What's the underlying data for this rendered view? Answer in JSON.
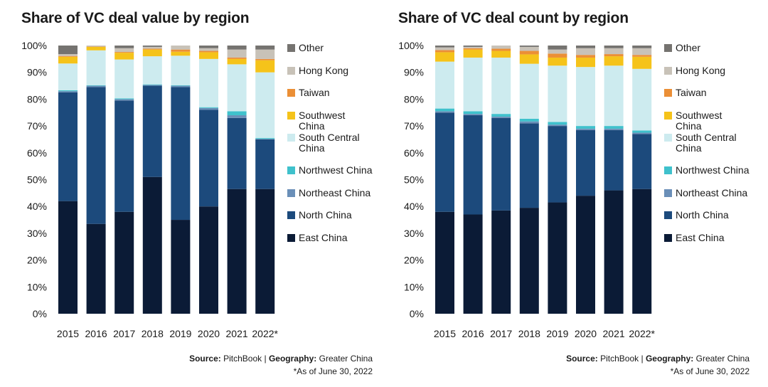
{
  "colors": {
    "East China": "#0b1b36",
    "North China": "#1c4a7c",
    "Northeast China": "#6a8fb8",
    "Northwest China": "#3fc1cc",
    "South Central China": "#cdebef",
    "Southwest China": "#f5c31a",
    "Taiwan": "#eb8f36",
    "Hong Kong": "#c8c2b8",
    "Other": "#757370"
  },
  "legend": [
    {
      "key": "Other",
      "label": "Other"
    },
    {
      "key": "Hong Kong",
      "label": "Hong Kong"
    },
    {
      "key": "Taiwan",
      "label": "Taiwan"
    },
    {
      "key": "Southwest China",
      "label": "Southwest China"
    },
    {
      "key": "South Central China",
      "label": "South Central China"
    },
    {
      "key": "Northwest China",
      "label": "Northwest China"
    },
    {
      "key": "Northeast China",
      "label": "Northeast China"
    },
    {
      "key": "North China",
      "label": "North China"
    },
    {
      "key": "East China",
      "label": "East China"
    }
  ],
  "chart_data": [
    {
      "type": "bar",
      "stacked": true,
      "title": "Share of VC deal value by region",
      "categories": [
        "2015",
        "2016",
        "2017",
        "2018",
        "2019",
        "2020",
        "2021",
        "2022*"
      ],
      "y_ticks": [
        "0%",
        "10%",
        "20%",
        "30%",
        "40%",
        "50%",
        "60%",
        "70%",
        "80%",
        "90%",
        "100%"
      ],
      "ylim": [
        0,
        100
      ],
      "series": [
        {
          "name": "East China",
          "values": [
            42,
            33.5,
            38,
            51,
            35,
            40,
            46.5,
            46.5
          ]
        },
        {
          "name": "North China",
          "values": [
            40.5,
            51,
            41.5,
            34,
            49.5,
            36,
            26.5,
            18.5
          ]
        },
        {
          "name": "Northeast China",
          "values": [
            0.5,
            0.5,
            0.5,
            0.3,
            0.5,
            0.7,
            1.0,
            0.2
          ]
        },
        {
          "name": "Northwest China",
          "values": [
            0.3,
            0.2,
            0.3,
            0.2,
            0.2,
            0.3,
            1.5,
            0.3
          ]
        },
        {
          "name": "South Central China",
          "values": [
            10,
            13,
            14.5,
            10.5,
            11,
            18,
            17.5,
            24.5
          ]
        },
        {
          "name": "Southwest China",
          "values": [
            2.5,
            1.3,
            2.5,
            2.5,
            1.5,
            2.5,
            2.0,
            4.5
          ]
        },
        {
          "name": "Taiwan",
          "values": [
            0.3,
            0.1,
            0.3,
            0.3,
            0.8,
            0.5,
            0.5,
            0.5
          ]
        },
        {
          "name": "Hong Kong",
          "values": [
            0.7,
            0.4,
            1.4,
            0.7,
            1.5,
            1.0,
            3.0,
            3.5
          ]
        },
        {
          "name": "Other",
          "values": [
            3.2,
            0.0,
            1.0,
            0.5,
            0.0,
            1.0,
            1.5,
            1.5
          ]
        }
      ],
      "source_label": "Source:",
      "source_value": "PitchBook",
      "separator": "|",
      "geography_label": "Geography:",
      "geography_value": "Greater China",
      "note": "*As of June 30, 2022"
    },
    {
      "type": "bar",
      "stacked": true,
      "title": "Share of VC deal count by region",
      "categories": [
        "2015",
        "2016",
        "2017",
        "2018",
        "2019",
        "2020",
        "2021",
        "2022*"
      ],
      "y_ticks": [
        "0%",
        "10%",
        "20%",
        "30%",
        "40%",
        "50%",
        "60%",
        "70%",
        "80%",
        "90%",
        "100%"
      ],
      "ylim": [
        0,
        100
      ],
      "series": [
        {
          "name": "East China",
          "values": [
            38,
            37,
            38.5,
            39.5,
            41.5,
            44,
            46,
            46.5
          ]
        },
        {
          "name": "North China",
          "values": [
            37,
            37,
            34.5,
            31.5,
            28.5,
            24.5,
            22.5,
            20.5
          ]
        },
        {
          "name": "Northeast China",
          "values": [
            0.5,
            0.5,
            0.5,
            0.7,
            0.5,
            0.5,
            0.5,
            0.5
          ]
        },
        {
          "name": "Northwest China",
          "values": [
            1.0,
            1.0,
            1.0,
            1.0,
            1.0,
            1.0,
            1.0,
            0.8
          ]
        },
        {
          "name": "South Central China",
          "values": [
            17.5,
            20.0,
            21.0,
            20.5,
            21.0,
            22.0,
            22.5,
            23.0
          ]
        },
        {
          "name": "Southwest China",
          "values": [
            3.5,
            3.0,
            2.5,
            3.5,
            3.0,
            3.5,
            3.5,
            4.5
          ]
        },
        {
          "name": "Taiwan",
          "values": [
            0.8,
            0.5,
            0.8,
            1.3,
            1.5,
            1.0,
            0.8,
            0.7
          ]
        },
        {
          "name": "Hong Kong",
          "values": [
            1.0,
            0.5,
            1.2,
            1.5,
            1.5,
            2.5,
            2.2,
            2.5
          ]
        },
        {
          "name": "Other",
          "values": [
            0.7,
            0.5,
            0.0,
            0.5,
            1.5,
            1.0,
            1.0,
            1.0
          ]
        }
      ],
      "source_label": "Source:",
      "source_value": "PitchBook",
      "separator": "|",
      "geography_label": "Geography:",
      "geography_value": "Greater China",
      "note": "*As of June 30, 2022"
    }
  ]
}
